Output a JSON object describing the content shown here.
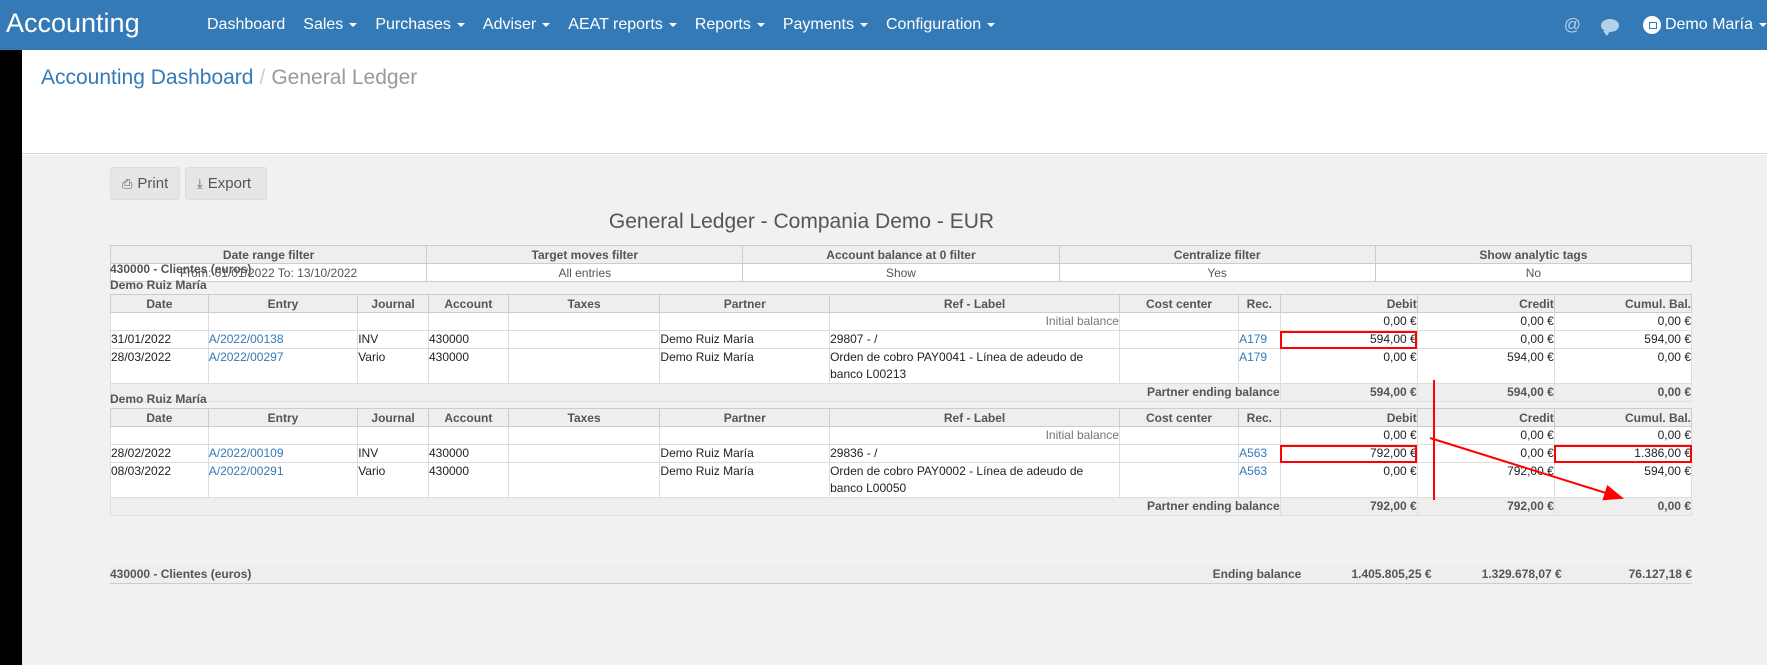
{
  "navbar": {
    "brand": "Accounting",
    "items": [
      "Dashboard",
      "Sales",
      "Purchases",
      "Adviser",
      "AEAT reports",
      "Reports",
      "Payments",
      "Configuration"
    ],
    "user": "Demo María",
    "icons": [
      "at-icon",
      "chat-icon",
      "user-avatar-icon"
    ]
  },
  "breadcrumb": {
    "link": "Accounting Dashboard",
    "sep": "/",
    "current": "General Ledger"
  },
  "toolbar": {
    "print": "Print",
    "export": "Export"
  },
  "report": {
    "title": "General Ledger - Compania Demo - EUR",
    "filters": {
      "headers": [
        "Date range filter",
        "Target moves filter",
        "Account balance at 0 filter",
        "Centralize filter",
        "Show analytic tags"
      ],
      "values": [
        "From: 01/01/2022 To: 13/10/2022",
        "All entries",
        "Show",
        "Yes",
        "No"
      ]
    },
    "columns": [
      "Date",
      "Entry",
      "Journal",
      "Account",
      "Taxes",
      "Partner",
      "Ref - Label",
      "Cost center",
      "Rec.",
      "Debit",
      "Credit",
      "Cumul. Bal."
    ],
    "account": {
      "title": "430000 - Clientes (euros)",
      "partners": [
        {
          "name": "Demo Ruiz María",
          "initial": {
            "label": "Initial balance",
            "debit": "0,00 €",
            "credit": "0,00 €",
            "balance": "0,00 €"
          },
          "rows": [
            {
              "date": "31/01/2022",
              "entry": "A/2022/00138",
              "journal": "INV",
              "account": "430000",
              "taxes": "",
              "partner": "Demo Ruiz María",
              "label": "29807 - /",
              "cost_center": "",
              "rec": "A179",
              "debit": "594,00 €",
              "credit": "0,00 €",
              "balance": "594,00 €"
            },
            {
              "date": "28/03/2022",
              "entry": "A/2022/00297",
              "journal": "Vario",
              "account": "430000",
              "taxes": "",
              "partner": "Demo Ruiz María",
              "label": "Orden de cobro PAY0041 - Línea de adeudo de banco L00213",
              "cost_center": "",
              "rec": "A179",
              "debit": "0,00 €",
              "credit": "594,00 €",
              "balance": "0,00 €"
            }
          ],
          "ending": {
            "label": "Partner ending balance",
            "debit": "594,00 €",
            "credit": "594,00 €",
            "balance": "0,00 €"
          }
        },
        {
          "name": "Demo Ruiz María",
          "initial": {
            "label": "Initial balance",
            "debit": "0,00 €",
            "credit": "0,00 €",
            "balance": "0,00 €"
          },
          "rows": [
            {
              "date": "28/02/2022",
              "entry": "A/2022/00109",
              "journal": "INV",
              "account": "430000",
              "taxes": "",
              "partner": "Demo Ruiz María",
              "label": "29836 - /",
              "cost_center": "",
              "rec": "A563",
              "debit": "792,00 €",
              "credit": "0,00 €",
              "balance": "1.386,00 €"
            },
            {
              "date": "08/03/2022",
              "entry": "A/2022/00291",
              "journal": "Vario",
              "account": "430000",
              "taxes": "",
              "partner": "Demo Ruiz María",
              "label": "Orden de cobro PAY0002 - Línea de adeudo de banco L00050",
              "cost_center": "",
              "rec": "A563",
              "debit": "0,00 €",
              "credit": "792,00 €",
              "balance": "594,00 €"
            }
          ],
          "ending": {
            "label": "Partner ending balance",
            "debit": "792,00 €",
            "credit": "792,00 €",
            "balance": "0,00 €"
          }
        }
      ],
      "ending": {
        "account": "430000 - Clientes (euros)",
        "label": "Ending balance",
        "debit": "1.405.805,25 €",
        "credit": "1.329.678,07 €",
        "balance": "76.127,18 €"
      }
    }
  },
  "colors": {
    "navbar": "#337ab7",
    "highlight": "#ff0000",
    "link": "#337ab7"
  }
}
